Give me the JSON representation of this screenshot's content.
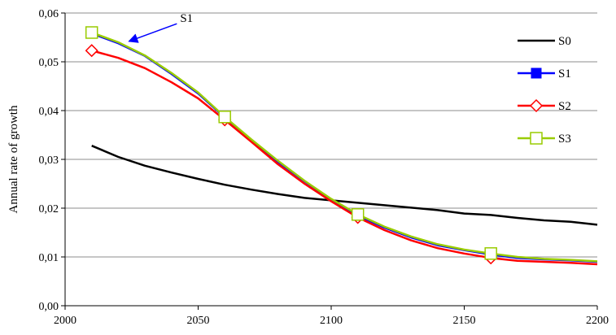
{
  "chart_data": {
    "type": "line",
    "xlabel": "",
    "ylabel": "Annual rate of growth",
    "xlim": [
      2000,
      2200
    ],
    "ylim": [
      0,
      0.06
    ],
    "x_ticks": [
      2000,
      2050,
      2100,
      2150,
      2200
    ],
    "x_tick_labels": [
      "2000",
      "2050",
      "2100",
      "2150",
      "2200"
    ],
    "y_ticks": [
      0,
      0.01,
      0.02,
      0.03,
      0.04,
      0.05,
      0.06
    ],
    "y_tick_labels": [
      "0,00",
      "0,01",
      "0,02",
      "0,03",
      "0,04",
      "0,05",
      "0,06"
    ],
    "grid": "horizontal",
    "legend_position": "right",
    "series": [
      {
        "name": "S0",
        "color": "#000000",
        "marker": "none",
        "x": [
          2010,
          2020,
          2030,
          2040,
          2050,
          2060,
          2070,
          2080,
          2090,
          2100,
          2110,
          2120,
          2130,
          2140,
          2150,
          2160,
          2170,
          2180,
          2190,
          2200
        ],
        "y": [
          0.0328,
          0.0305,
          0.0287,
          0.0273,
          0.026,
          0.0248,
          0.0238,
          0.0229,
          0.0221,
          0.0216,
          0.0211,
          0.0206,
          0.0201,
          0.0196,
          0.0189,
          0.0186,
          0.018,
          0.0175,
          0.0172,
          0.0166
        ]
      },
      {
        "name": "S1",
        "color": "#0000ff",
        "marker": "square-filled",
        "marker_x": [],
        "x": [
          2010,
          2020,
          2030,
          2040,
          2050,
          2060,
          2070,
          2080,
          2090,
          2100,
          2110,
          2120,
          2130,
          2140,
          2150,
          2160,
          2170,
          2180,
          2190,
          2200
        ],
        "y": [
          0.0558,
          0.0538,
          0.0512,
          0.0475,
          0.0435,
          0.0386,
          0.034,
          0.0295,
          0.0255,
          0.0218,
          0.0185,
          0.016,
          0.014,
          0.0124,
          0.0114,
          0.0105,
          0.0098,
          0.0095,
          0.0093,
          0.009
        ]
      },
      {
        "name": "S2",
        "color": "#ff0000",
        "marker": "diamond-open",
        "marker_x": [
          2010,
          2060,
          2110,
          2160
        ],
        "x": [
          2010,
          2020,
          2030,
          2040,
          2050,
          2060,
          2070,
          2080,
          2090,
          2100,
          2110,
          2120,
          2130,
          2140,
          2150,
          2160,
          2170,
          2180,
          2190,
          2200
        ],
        "y": [
          0.0523,
          0.0508,
          0.0487,
          0.0458,
          0.0425,
          0.0381,
          0.0336,
          0.029,
          0.025,
          0.0214,
          0.0181,
          0.0155,
          0.0134,
          0.0118,
          0.0107,
          0.0098,
          0.0092,
          0.009,
          0.0088,
          0.0085
        ]
      },
      {
        "name": "S3",
        "color": "#99cc00",
        "marker": "square-open",
        "marker_x": [
          2010,
          2060,
          2110,
          2160
        ],
        "x": [
          2010,
          2020,
          2030,
          2040,
          2050,
          2060,
          2070,
          2080,
          2090,
          2100,
          2110,
          2120,
          2130,
          2140,
          2150,
          2160,
          2170,
          2180,
          2190,
          2200
        ],
        "y": [
          0.056,
          0.054,
          0.0513,
          0.0477,
          0.0437,
          0.0387,
          0.0341,
          0.0297,
          0.0256,
          0.0219,
          0.0187,
          0.0162,
          0.0142,
          0.0126,
          0.0115,
          0.0107,
          0.01,
          0.0096,
          0.0094,
          0.0091
        ]
      }
    ],
    "annotations": [
      {
        "text": "S1",
        "arrow_from": [
          2042,
          0.0578
        ],
        "arrow_to": [
          2024,
          0.0542
        ],
        "color": "#0000ff"
      }
    ]
  }
}
